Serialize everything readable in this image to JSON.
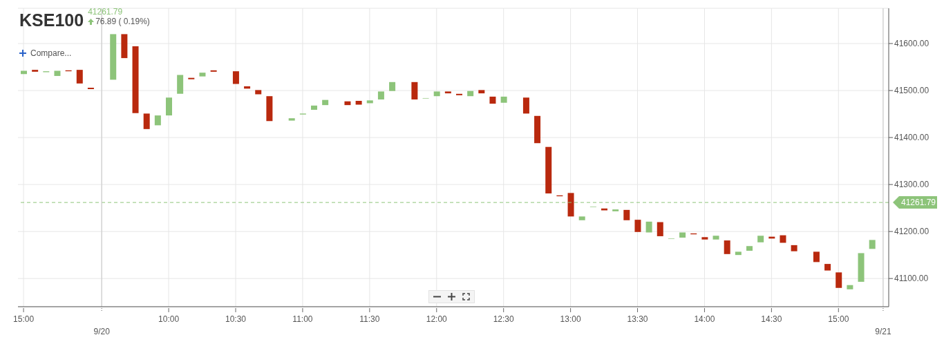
{
  "chart_data": {
    "type": "candlestick",
    "title": "KSE100",
    "subtitle": "41261.79",
    "annotations": [
      "76.89 ( 0.19%)",
      "Compare..."
    ],
    "categories": [
      "15:00",
      null,
      null,
      null,
      null,
      null,
      null,
      "9/20",
      null,
      null,
      null,
      null,
      null,
      "10:00",
      null,
      null,
      null,
      null,
      null,
      "10:30",
      null,
      null,
      null,
      null,
      null,
      "11:00",
      null,
      null,
      null,
      null,
      null,
      "11:30",
      null,
      null,
      null,
      null,
      null,
      "12:00",
      null,
      null,
      null,
      null,
      null,
      "12:30",
      null,
      null,
      null,
      null,
      null,
      "13:00",
      null,
      null,
      null,
      null,
      null,
      "13:30",
      null,
      null,
      null,
      null,
      null,
      "14:00",
      null,
      null,
      null,
      null,
      null,
      "14:30",
      null,
      null,
      null,
      null,
      null,
      "15:00",
      null,
      null,
      null,
      "9/21"
    ],
    "ohlc": [
      [
        41535,
        41542,
        41535,
        41542
      ],
      [
        41544,
        41544,
        41540,
        41540
      ],
      [
        41539,
        41541,
        41539,
        41541
      ],
      [
        41531,
        41542,
        41531,
        41542
      ],
      [
        41543,
        41543,
        41541,
        41541
      ],
      [
        41544,
        41544,
        41515,
        41515
      ],
      [
        41506,
        41506,
        41503,
        41503
      ],
      null,
      [
        41523,
        41620,
        41523,
        41620
      ],
      [
        41620,
        41620,
        41569,
        41569
      ],
      [
        41594,
        41594,
        41452,
        41452
      ],
      [
        41451,
        41451,
        41418,
        41418
      ],
      [
        41426,
        41447,
        41426,
        41447
      ],
      [
        41447,
        41485,
        41447,
        41485
      ],
      [
        41493,
        41533,
        41493,
        41533
      ],
      [
        41527,
        41527,
        41524,
        41524
      ],
      [
        41530,
        41538,
        41530,
        41538
      ],
      [
        41543,
        41543,
        41540,
        41540
      ],
      null,
      [
        41541,
        41541,
        41514,
        41514
      ],
      [
        41509,
        41509,
        41504,
        41504
      ],
      [
        41501,
        41501,
        41492,
        41492
      ],
      [
        41488,
        41488,
        41435,
        41435
      ],
      null,
      [
        41436,
        41441,
        41436,
        41441
      ],
      [
        41449,
        41451,
        41449,
        41451
      ],
      [
        41459,
        41468,
        41459,
        41468
      ],
      [
        41469,
        41480,
        41469,
        41480
      ],
      null,
      [
        41477,
        41477,
        41469,
        41469
      ],
      [
        41478,
        41478,
        41470,
        41470
      ],
      [
        41473,
        41479,
        41473,
        41479
      ],
      [
        41481,
        41498,
        41481,
        41498
      ],
      [
        41499,
        41518,
        41499,
        41518
      ],
      null,
      [
        41518,
        41518,
        41481,
        41481
      ],
      [
        41483,
        41484,
        41483,
        41484
      ],
      [
        41488,
        41498,
        41488,
        41498
      ],
      [
        41498,
        41498,
        41494,
        41494
      ],
      [
        41493,
        41493,
        41490,
        41490
      ],
      [
        41488,
        41499,
        41488,
        41499
      ],
      [
        41501,
        41501,
        41494,
        41494
      ],
      [
        41487,
        41487,
        41472,
        41472
      ],
      [
        41474,
        41487,
        41474,
        41487
      ],
      null,
      [
        41485,
        41485,
        41451,
        41451
      ],
      [
        41446,
        41446,
        41388,
        41388
      ],
      [
        41380,
        41380,
        41281,
        41281
      ],
      [
        41277,
        41277,
        41275,
        41275
      ],
      [
        41282,
        41282,
        41232,
        41232
      ],
      [
        41224,
        41232,
        41224,
        41232
      ],
      [
        41252,
        41253,
        41252,
        41253
      ],
      [
        41249,
        41249,
        41245,
        41245
      ],
      [
        41243,
        41247,
        41243,
        41247
      ],
      [
        41246,
        41246,
        41224,
        41224
      ],
      [
        41225,
        41225,
        41199,
        41199
      ],
      [
        41198,
        41221,
        41198,
        41221
      ],
      [
        41220,
        41220,
        41190,
        41190
      ],
      [
        41184,
        41185,
        41184,
        41185
      ],
      [
        41187,
        41198,
        41187,
        41198
      ],
      [
        41196,
        41196,
        41194,
        41194
      ],
      [
        41188,
        41188,
        41183,
        41183
      ],
      [
        41183,
        41191,
        41183,
        41191
      ],
      [
        41181,
        41181,
        41152,
        41152
      ],
      [
        41150,
        41157,
        41150,
        41157
      ],
      [
        41159,
        41169,
        41159,
        41169
      ],
      [
        41177,
        41191,
        41177,
        41191
      ],
      [
        41189,
        41189,
        41185,
        41185
      ],
      [
        41192,
        41192,
        41176,
        41176
      ],
      [
        41171,
        41171,
        41158,
        41158
      ],
      null,
      [
        41157,
        41157,
        41135,
        41135
      ],
      [
        41131,
        41131,
        41117,
        41117
      ],
      [
        41113,
        41113,
        41080,
        41080
      ],
      [
        41077,
        41086,
        41077,
        41086
      ],
      [
        41093,
        41154,
        41093,
        41154
      ],
      [
        41163,
        41182,
        41163,
        41182
      ],
      null
    ],
    "colors": [
      "#8dc47a",
      "#b9290e",
      "#8dc47a",
      "#8dc47a",
      "#b9290e",
      "#b9290e",
      "#b9290e",
      null,
      "#8dc47a",
      "#b9290e",
      "#b9290e",
      "#b9290e",
      "#8dc47a",
      "#8dc47a",
      "#8dc47a",
      "#b9290e",
      "#8dc47a",
      "#b9290e",
      null,
      "#b9290e",
      "#b9290e",
      "#b9290e",
      "#b9290e",
      null,
      "#8dc47a",
      "#8dc47a",
      "#8dc47a",
      "#8dc47a",
      null,
      "#b9290e",
      "#b9290e",
      "#8dc47a",
      "#8dc47a",
      "#8dc47a",
      null,
      "#b9290e",
      "#8dc47a",
      "#8dc47a",
      "#b9290e",
      "#b9290e",
      "#8dc47a",
      "#b9290e",
      "#b9290e",
      "#8dc47a",
      null,
      "#b9290e",
      "#b9290e",
      "#b9290e",
      "#b9290e",
      "#b9290e",
      "#8dc47a",
      "#8dc47a",
      "#b9290e",
      "#8dc47a",
      "#b9290e",
      "#b9290e",
      "#8dc47a",
      "#b9290e",
      "#8dc47a",
      "#8dc47a",
      "#b9290e",
      "#b9290e",
      "#8dc47a",
      "#b9290e",
      "#8dc47a",
      "#8dc47a",
      "#8dc47a",
      "#b9290e",
      "#b9290e",
      "#b9290e",
      null,
      "#b9290e",
      "#b9290e",
      "#b9290e",
      "#8dc47a",
      "#8dc47a",
      "#8dc47a",
      null
    ],
    "ylim": [
      41040,
      41675
    ],
    "yticks": [
      {
        "value": 41100,
        "label": "41100.00"
      },
      {
        "value": 41200,
        "label": "41200.00"
      },
      {
        "value": 41300,
        "label": "41300.00"
      },
      {
        "value": 41400,
        "label": "41400.00"
      },
      {
        "value": 41500,
        "label": "41500.00"
      },
      {
        "value": 41600,
        "label": "41600.00"
      }
    ],
    "ref_lines": [
      {
        "axis": "y",
        "value": 41261.79,
        "label": "41261.79",
        "color": "#8dc47a",
        "line_style": "dashed"
      }
    ],
    "grid": true
  }
}
